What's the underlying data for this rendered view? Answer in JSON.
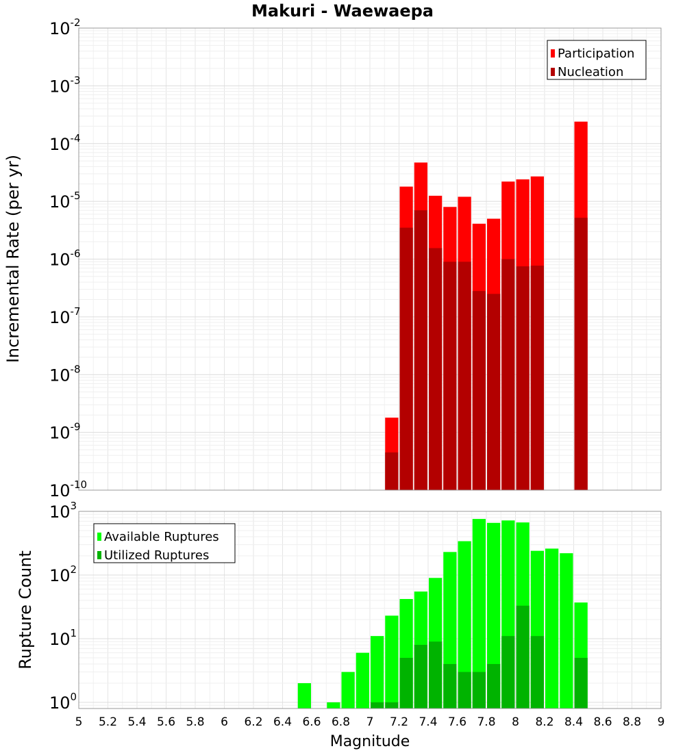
{
  "chart_data": [
    {
      "type": "bar",
      "title": "Makuri - Waewaepa",
      "ylabel": "Incremental Rate (per yr)",
      "xlabel": "",
      "y_scale": "log",
      "ylim": [
        1e-10,
        0.01
      ],
      "xlim": [
        5,
        9
      ],
      "bin_width": 0.1,
      "y_ticks": [
        {
          "base": "10",
          "exp": "-10"
        },
        {
          "base": "10",
          "exp": "-9"
        },
        {
          "base": "10",
          "exp": "-8"
        },
        {
          "base": "10",
          "exp": "-7"
        },
        {
          "base": "10",
          "exp": "-6"
        },
        {
          "base": "10",
          "exp": "-5"
        },
        {
          "base": "10",
          "exp": "-4"
        },
        {
          "base": "10",
          "exp": "-3"
        },
        {
          "base": "10",
          "exp": "-2"
        }
      ],
      "grid": true,
      "legend_position": "top-right",
      "series": [
        {
          "name": "Participation",
          "color": "#ff0000",
          "x": [
            7.15,
            7.25,
            7.35,
            7.45,
            7.55,
            7.65,
            7.75,
            7.85,
            7.95,
            8.05,
            8.15,
            8.45
          ],
          "values": [
            1.8e-09,
            1.8e-05,
            4.7e-05,
            1.25e-05,
            8e-06,
            1.2e-05,
            4.1e-06,
            5e-06,
            2.2e-05,
            2.4e-05,
            2.7e-05,
            0.00024
          ]
        },
        {
          "name": "Nucleation",
          "color": "#b30000",
          "x": [
            7.15,
            7.25,
            7.35,
            7.45,
            7.55,
            7.65,
            7.75,
            7.85,
            7.95,
            8.05,
            8.15,
            8.45
          ],
          "values": [
            4.5e-10,
            3.5e-06,
            7e-06,
            1.55e-06,
            9e-07,
            9e-07,
            2.8e-07,
            2.5e-07,
            1e-06,
            7.5e-07,
            7.7e-07,
            5.2e-06
          ]
        }
      ]
    },
    {
      "type": "bar",
      "title": "",
      "ylabel": "Rupture Count",
      "xlabel": "Magnitude",
      "y_scale": "log",
      "ylim": [
        0.8,
        1000
      ],
      "xlim": [
        5,
        9
      ],
      "bin_width": 0.1,
      "y_ticks": [
        {
          "base": "10",
          "exp": "0"
        },
        {
          "base": "10",
          "exp": "1"
        },
        {
          "base": "10",
          "exp": "2"
        },
        {
          "base": "10",
          "exp": "3"
        }
      ],
      "x_ticks": [
        "5",
        "5.2",
        "5.4",
        "5.6",
        "5.8",
        "6",
        "6.2",
        "6.4",
        "6.6",
        "6.8",
        "7",
        "7.2",
        "7.4",
        "7.6",
        "7.8",
        "8",
        "8.2",
        "8.4",
        "8.6",
        "8.8",
        "9"
      ],
      "grid": true,
      "legend_position": "top-left",
      "series": [
        {
          "name": "Available Ruptures",
          "color": "#00ff00",
          "x": [
            6.55,
            6.75,
            6.85,
            6.95,
            7.05,
            7.15,
            7.25,
            7.35,
            7.45,
            7.55,
            7.65,
            7.75,
            7.85,
            7.95,
            8.05,
            8.15,
            8.25,
            8.35,
            8.45
          ],
          "values": [
            2,
            1,
            3,
            6,
            11,
            23,
            42,
            55,
            90,
            230,
            340,
            760,
            660,
            720,
            670,
            240,
            260,
            220,
            37
          ]
        },
        {
          "name": "Utilized Ruptures",
          "color": "#00b300",
          "x": [
            7.05,
            7.15,
            7.25,
            7.35,
            7.45,
            7.55,
            7.65,
            7.75,
            7.85,
            7.95,
            8.05,
            8.15,
            8.45
          ],
          "values": [
            1,
            1,
            5,
            8,
            9,
            4,
            3,
            3,
            4,
            11,
            33,
            11,
            5
          ]
        }
      ]
    }
  ]
}
